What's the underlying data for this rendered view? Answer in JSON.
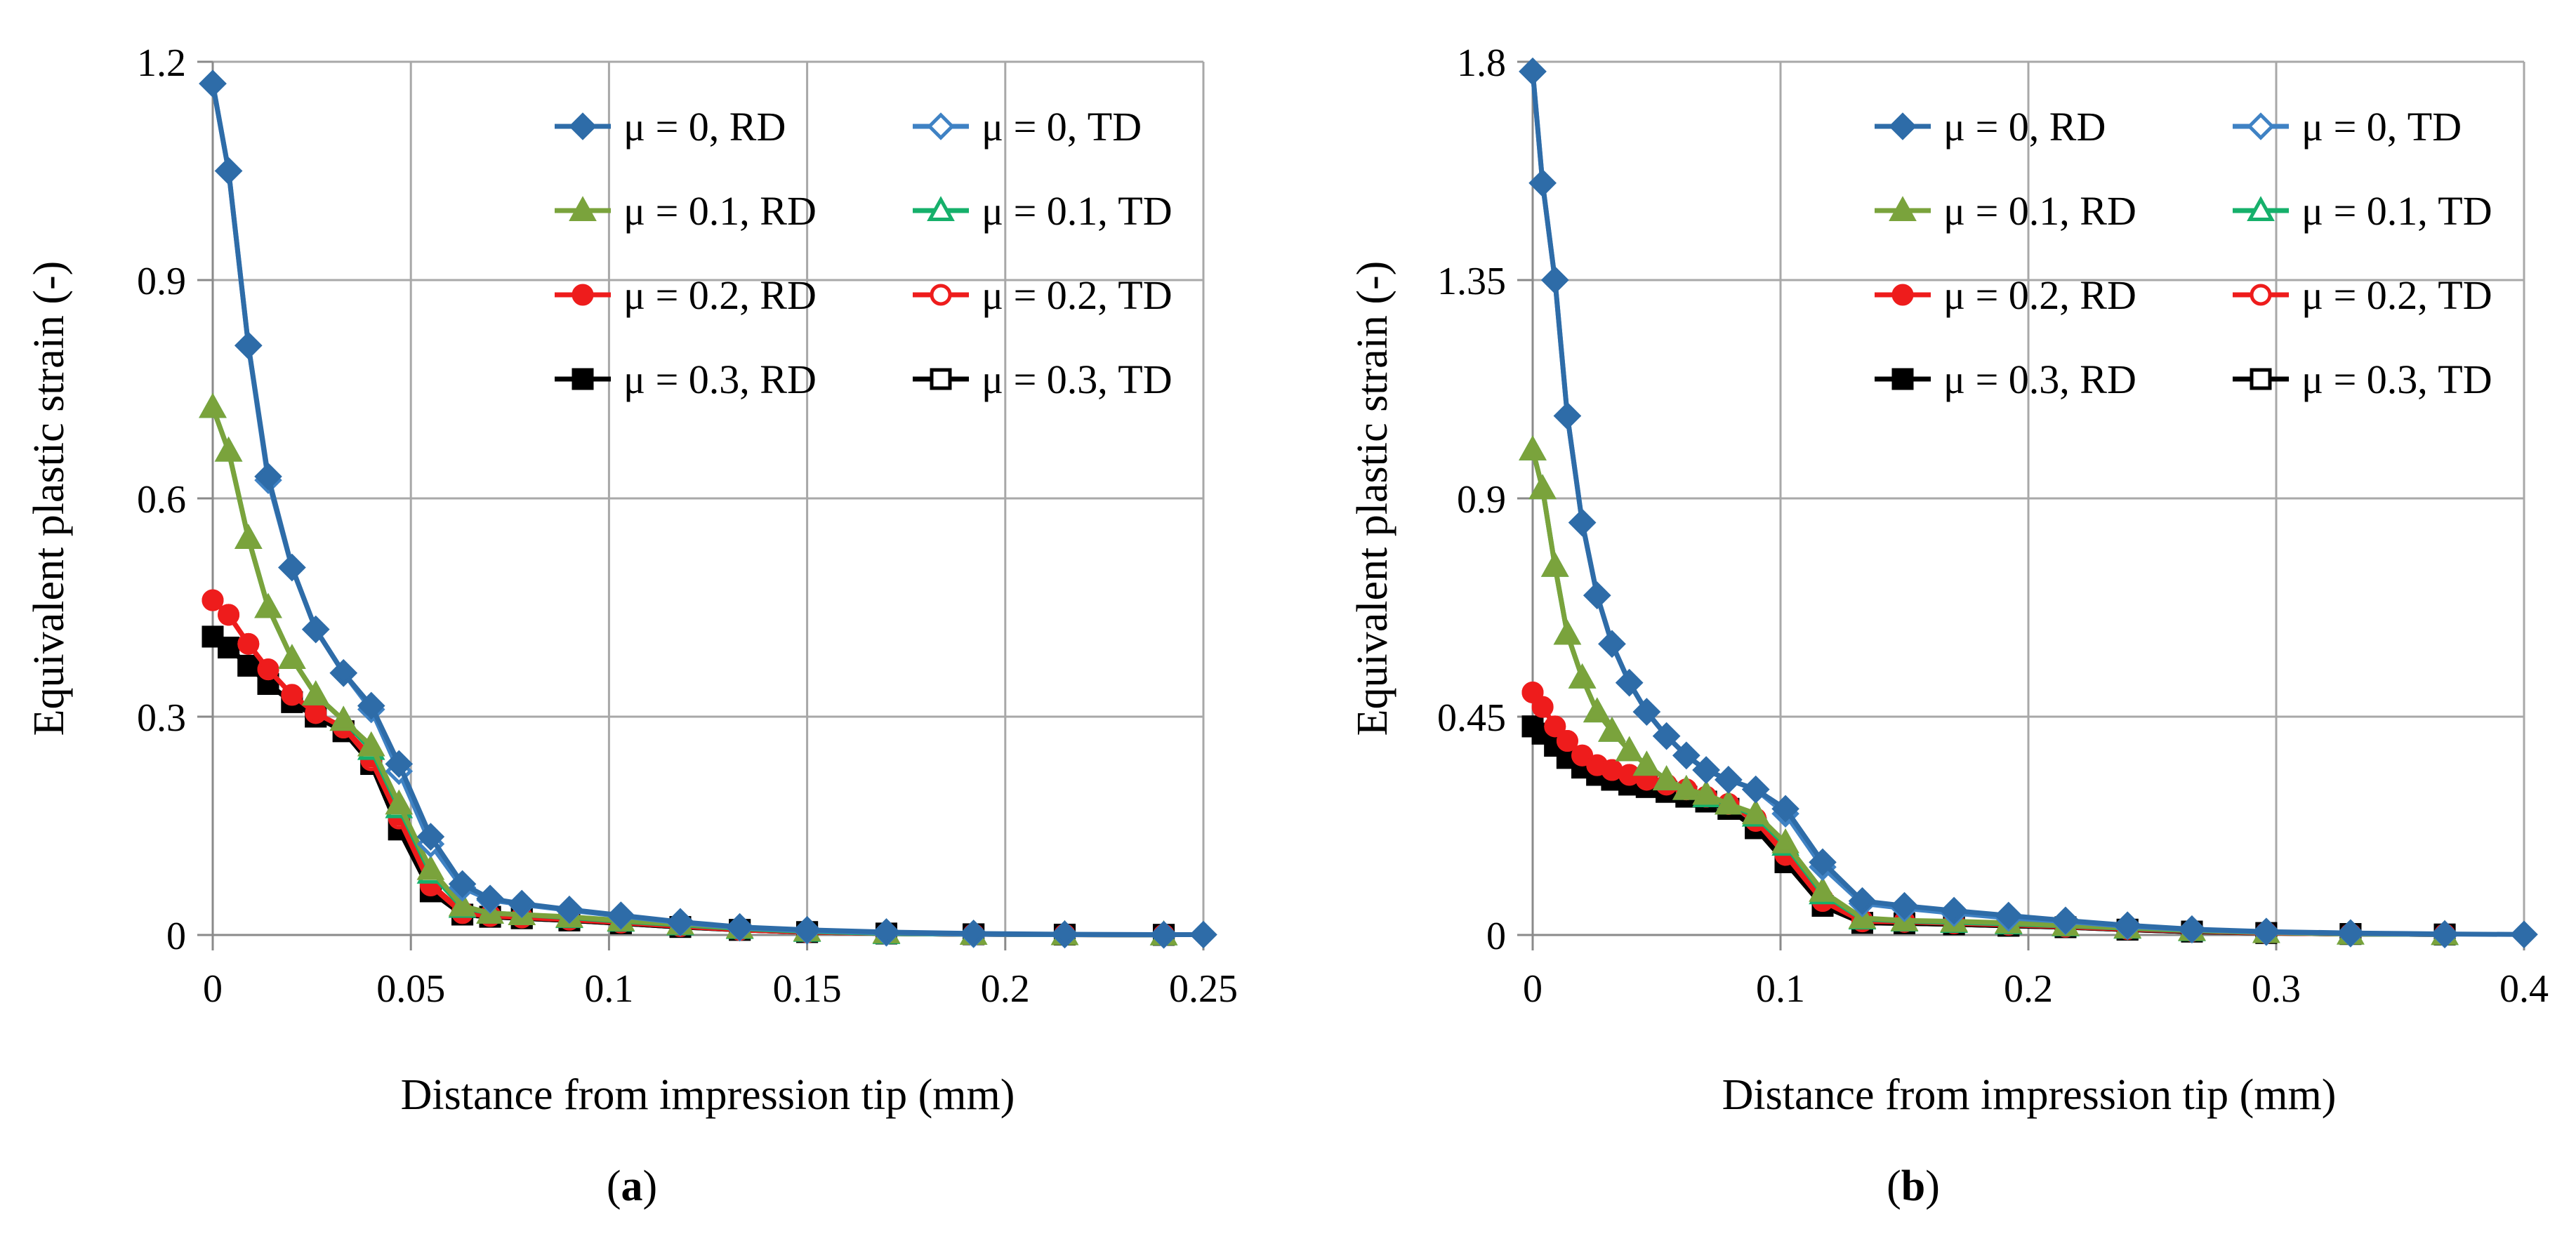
{
  "figure": {
    "panels": [
      "(a)",
      "(b)"
    ]
  },
  "chart_data": [
    {
      "type": "line",
      "panel_label": "(a)",
      "xlabel": "Distance from impression tip (mm)",
      "ylabel": "Equivalent plastic strain (-)",
      "xlim": [
        0,
        0.25
      ],
      "ylim": [
        0,
        1.2
      ],
      "xticks": [
        0,
        0.05,
        0.1,
        0.15,
        0.2,
        0.25
      ],
      "xtick_labels": [
        "0",
        "0.05",
        "0.1",
        "0.15",
        "0.2",
        "0.25"
      ],
      "yticks": [
        0,
        0.3,
        0.6,
        0.9,
        1.2
      ],
      "ytick_labels": [
        "0",
        "0.3",
        "0.6",
        "0.9",
        "1.2"
      ],
      "grid": true,
      "legend_position": "top-right",
      "series": [
        {
          "name": "μ = 0, RD",
          "color": "#2e6ca8",
          "marker": "diamond-filled",
          "x": [
            0,
            0.004,
            0.009,
            0.014,
            0.02,
            0.026,
            0.033,
            0.04,
            0.047,
            0.055,
            0.063,
            0.07,
            0.078,
            0.09,
            0.103,
            0.118,
            0.133,
            0.15,
            0.17,
            0.192,
            0.215,
            0.24,
            0.25
          ],
          "y": [
            1.17,
            1.05,
            0.81,
            0.63,
            0.505,
            0.42,
            0.36,
            0.315,
            0.235,
            0.135,
            0.07,
            0.05,
            0.043,
            0.035,
            0.027,
            0.018,
            0.011,
            0.007,
            0.004,
            0.002,
            0.001,
            0.0005,
            0.0005
          ]
        },
        {
          "name": "μ = 0, TD",
          "color": "#3f82c4",
          "marker": "diamond-open",
          "x": [
            0,
            0.004,
            0.009,
            0.014,
            0.02,
            0.026,
            0.033,
            0.04,
            0.047,
            0.055,
            0.063,
            0.07,
            0.078,
            0.09,
            0.103,
            0.118,
            0.133,
            0.15,
            0.17,
            0.192,
            0.215,
            0.24
          ],
          "y": [
            1.17,
            1.05,
            0.81,
            0.625,
            0.505,
            0.42,
            0.36,
            0.31,
            0.225,
            0.125,
            0.065,
            0.048,
            0.042,
            0.034,
            0.026,
            0.017,
            0.01,
            0.006,
            0.003,
            0.001,
            0.0005,
            0.0002
          ]
        },
        {
          "name": "μ = 0.1, RD",
          "color": "#7aa33c",
          "marker": "triangle-filled",
          "x": [
            0,
            0.004,
            0.009,
            0.014,
            0.02,
            0.026,
            0.033,
            0.04,
            0.047,
            0.055,
            0.063,
            0.07,
            0.078,
            0.09,
            0.103,
            0.118,
            0.133,
            0.15,
            0.17,
            0.192,
            0.215,
            0.24
          ],
          "y": [
            0.725,
            0.665,
            0.545,
            0.45,
            0.38,
            0.33,
            0.295,
            0.26,
            0.18,
            0.09,
            0.04,
            0.03,
            0.028,
            0.025,
            0.02,
            0.015,
            0.01,
            0.006,
            0.003,
            0.001,
            0.0005,
            0.0002
          ]
        },
        {
          "name": "μ = 0.1, TD",
          "color": "#16b06b",
          "marker": "triangle-open",
          "x": [
            0,
            0.004,
            0.009,
            0.014,
            0.02,
            0.026,
            0.033,
            0.04,
            0.047,
            0.055,
            0.063,
            0.07,
            0.078,
            0.09,
            0.103,
            0.118,
            0.133,
            0.15,
            0.17,
            0.192,
            0.215,
            0.24
          ],
          "y": [
            0.725,
            0.665,
            0.545,
            0.45,
            0.38,
            0.33,
            0.295,
            0.255,
            0.175,
            0.085,
            0.038,
            0.03,
            0.028,
            0.024,
            0.019,
            0.014,
            0.009,
            0.005,
            0.002,
            0.001,
            0.0005,
            0.0002
          ]
        },
        {
          "name": "μ = 0.2, RD",
          "color": "#ee1c1c",
          "marker": "circle-filled",
          "x": [
            0,
            0.004,
            0.009,
            0.014,
            0.02,
            0.026,
            0.033,
            0.04,
            0.047,
            0.055,
            0.063,
            0.07,
            0.078,
            0.09,
            0.103,
            0.118,
            0.133,
            0.15,
            0.17,
            0.192,
            0.215,
            0.24
          ],
          "y": [
            0.46,
            0.44,
            0.4,
            0.365,
            0.33,
            0.305,
            0.285,
            0.245,
            0.165,
            0.07,
            0.032,
            0.027,
            0.025,
            0.022,
            0.018,
            0.013,
            0.008,
            0.004,
            0.002,
            0.001,
            0.0005,
            0.0002
          ]
        },
        {
          "name": "μ = 0.2, TD",
          "color": "#ee1c1c",
          "marker": "circle-open",
          "x": [
            0,
            0.004,
            0.009,
            0.014,
            0.02,
            0.026,
            0.033,
            0.04,
            0.047,
            0.055,
            0.063,
            0.07,
            0.078,
            0.09,
            0.103,
            0.118,
            0.133,
            0.15,
            0.17,
            0.192,
            0.215,
            0.24
          ],
          "y": [
            0.46,
            0.44,
            0.4,
            0.365,
            0.33,
            0.305,
            0.285,
            0.24,
            0.16,
            0.068,
            0.03,
            0.026,
            0.024,
            0.021,
            0.017,
            0.012,
            0.007,
            0.004,
            0.002,
            0.001,
            0.0005,
            0.0002
          ]
        },
        {
          "name": "μ = 0.3, RD",
          "color": "#000000",
          "marker": "square-filled",
          "x": [
            0,
            0.004,
            0.009,
            0.014,
            0.02,
            0.026,
            0.033,
            0.04,
            0.047,
            0.055,
            0.063,
            0.07,
            0.078,
            0.09,
            0.103,
            0.118,
            0.133,
            0.15,
            0.17,
            0.192,
            0.215,
            0.24
          ],
          "y": [
            0.41,
            0.395,
            0.37,
            0.345,
            0.32,
            0.3,
            0.28,
            0.235,
            0.145,
            0.06,
            0.028,
            0.025,
            0.023,
            0.02,
            0.016,
            0.011,
            0.007,
            0.004,
            0.002,
            0.001,
            0.0005,
            0.0002
          ]
        },
        {
          "name": "μ = 0.3, TD",
          "color": "#000000",
          "marker": "square-open",
          "x": [
            0,
            0.004,
            0.009,
            0.014,
            0.02,
            0.026,
            0.033,
            0.04,
            0.047,
            0.055,
            0.063,
            0.07,
            0.078,
            0.09,
            0.103,
            0.118,
            0.133,
            0.15,
            0.17,
            0.192,
            0.215,
            0.24
          ],
          "y": [
            0.41,
            0.395,
            0.37,
            0.345,
            0.32,
            0.3,
            0.28,
            0.235,
            0.145,
            0.06,
            0.028,
            0.025,
            0.023,
            0.02,
            0.016,
            0.011,
            0.007,
            0.004,
            0.002,
            0.001,
            0.0005,
            0.0002
          ]
        }
      ]
    },
    {
      "type": "line",
      "panel_label": "(b)",
      "xlabel": "Distance from impression tip (mm)",
      "ylabel": "Equivalent plastic strain (-)",
      "xlim": [
        0,
        0.4
      ],
      "ylim": [
        0,
        1.8
      ],
      "xticks": [
        0,
        0.1,
        0.2,
        0.3,
        0.4
      ],
      "xtick_labels": [
        "0",
        "0.1",
        "0.2",
        "0.3",
        "0.4"
      ],
      "yticks": [
        0,
        0.45,
        0.9,
        1.35,
        1.8
      ],
      "ytick_labels": [
        "0",
        "0.45",
        "0.9",
        "1.35",
        "1.8"
      ],
      "grid": true,
      "legend_position": "top-right",
      "series": [
        {
          "name": "μ = 0, RD",
          "color": "#2e6ca8",
          "marker": "diamond-filled",
          "x": [
            0,
            0.004,
            0.009,
            0.014,
            0.02,
            0.026,
            0.032,
            0.039,
            0.046,
            0.054,
            0.062,
            0.07,
            0.079,
            0.09,
            0.102,
            0.117,
            0.133,
            0.15,
            0.17,
            0.192,
            0.215,
            0.24,
            0.266,
            0.296,
            0.33,
            0.368,
            0.4
          ],
          "y": [
            1.78,
            1.55,
            1.35,
            1.07,
            0.85,
            0.7,
            0.6,
            0.52,
            0.46,
            0.41,
            0.37,
            0.34,
            0.32,
            0.3,
            0.26,
            0.15,
            0.07,
            0.06,
            0.05,
            0.04,
            0.03,
            0.02,
            0.012,
            0.007,
            0.004,
            0.002,
            0.001
          ]
        },
        {
          "name": "μ  = 0, TD",
          "color": "#3f82c4",
          "marker": "diamond-open",
          "x": [
            0,
            0.004,
            0.009,
            0.014,
            0.02,
            0.026,
            0.032,
            0.039,
            0.046,
            0.054,
            0.062,
            0.07,
            0.079,
            0.09,
            0.102,
            0.117,
            0.133,
            0.15,
            0.17,
            0.192,
            0.215,
            0.24,
            0.266,
            0.296,
            0.33,
            0.368
          ],
          "y": [
            1.78,
            1.55,
            1.35,
            1.07,
            0.85,
            0.7,
            0.6,
            0.52,
            0.46,
            0.41,
            0.37,
            0.34,
            0.32,
            0.3,
            0.25,
            0.14,
            0.065,
            0.055,
            0.045,
            0.035,
            0.028,
            0.018,
            0.011,
            0.006,
            0.003,
            0.001
          ]
        },
        {
          "name": "μ = 0.1, RD",
          "color": "#7aa33c",
          "marker": "triangle-filled",
          "x": [
            0,
            0.004,
            0.009,
            0.014,
            0.02,
            0.026,
            0.032,
            0.039,
            0.046,
            0.054,
            0.062,
            0.07,
            0.079,
            0.09,
            0.102,
            0.117,
            0.133,
            0.15,
            0.17,
            0.192,
            0.215,
            0.24,
            0.266,
            0.296,
            0.33,
            0.368
          ],
          "y": [
            1.0,
            0.92,
            0.76,
            0.62,
            0.53,
            0.46,
            0.42,
            0.38,
            0.35,
            0.32,
            0.3,
            0.29,
            0.27,
            0.25,
            0.19,
            0.09,
            0.035,
            0.03,
            0.028,
            0.025,
            0.02,
            0.015,
            0.01,
            0.005,
            0.002,
            0.001
          ]
        },
        {
          "name": "μ = 0.1, TD",
          "color": "#16b06b",
          "marker": "triangle-open",
          "x": [
            0,
            0.004,
            0.009,
            0.014,
            0.02,
            0.026,
            0.032,
            0.039,
            0.046,
            0.054,
            0.062,
            0.07,
            0.079,
            0.09,
            0.102,
            0.117,
            0.133,
            0.15,
            0.17,
            0.192,
            0.215,
            0.24,
            0.266,
            0.296,
            0.33,
            0.368
          ],
          "y": [
            1.0,
            0.92,
            0.76,
            0.62,
            0.53,
            0.46,
            0.42,
            0.38,
            0.35,
            0.32,
            0.3,
            0.285,
            0.27,
            0.245,
            0.185,
            0.085,
            0.033,
            0.029,
            0.026,
            0.023,
            0.019,
            0.014,
            0.009,
            0.005,
            0.002,
            0.001
          ]
        },
        {
          "name": "μ = 0.2, RD",
          "color": "#ee1c1c",
          "marker": "circle-filled",
          "x": [
            0,
            0.004,
            0.009,
            0.014,
            0.02,
            0.026,
            0.032,
            0.039,
            0.046,
            0.054,
            0.062,
            0.07,
            0.079,
            0.09,
            0.102,
            0.117,
            0.133,
            0.15,
            0.17,
            0.192,
            0.215,
            0.24,
            0.266,
            0.296,
            0.33,
            0.368
          ],
          "y": [
            0.5,
            0.47,
            0.43,
            0.4,
            0.37,
            0.35,
            0.34,
            0.33,
            0.32,
            0.31,
            0.3,
            0.285,
            0.27,
            0.24,
            0.17,
            0.075,
            0.03,
            0.028,
            0.025,
            0.022,
            0.018,
            0.013,
            0.009,
            0.005,
            0.002,
            0.001
          ]
        },
        {
          "name": "μ = 0.2, TD",
          "color": "#ee1c1c",
          "marker": "circle-open",
          "x": [
            0,
            0.004,
            0.009,
            0.014,
            0.02,
            0.026,
            0.032,
            0.039,
            0.046,
            0.054,
            0.062,
            0.07,
            0.079,
            0.09,
            0.102,
            0.117,
            0.133,
            0.15,
            0.17,
            0.192,
            0.215,
            0.24,
            0.266,
            0.296,
            0.33,
            0.368
          ],
          "y": [
            0.5,
            0.47,
            0.43,
            0.4,
            0.37,
            0.35,
            0.34,
            0.33,
            0.32,
            0.31,
            0.3,
            0.285,
            0.27,
            0.235,
            0.165,
            0.07,
            0.028,
            0.027,
            0.024,
            0.021,
            0.017,
            0.012,
            0.008,
            0.004,
            0.002,
            0.001
          ]
        },
        {
          "name": "μ = 0.3, RD",
          "color": "#000000",
          "marker": "square-filled",
          "x": [
            0,
            0.004,
            0.009,
            0.014,
            0.02,
            0.026,
            0.032,
            0.039,
            0.046,
            0.054,
            0.062,
            0.07,
            0.079,
            0.09,
            0.102,
            0.117,
            0.133,
            0.15,
            0.17,
            0.192,
            0.215,
            0.24,
            0.266,
            0.296,
            0.33,
            0.368
          ],
          "y": [
            0.43,
            0.415,
            0.39,
            0.365,
            0.345,
            0.33,
            0.32,
            0.31,
            0.305,
            0.295,
            0.285,
            0.275,
            0.26,
            0.22,
            0.15,
            0.06,
            0.025,
            0.024,
            0.022,
            0.019,
            0.016,
            0.011,
            0.007,
            0.004,
            0.002,
            0.001
          ]
        },
        {
          "name": "μ = 0.3, TD",
          "color": "#000000",
          "marker": "square-open",
          "x": [
            0,
            0.004,
            0.009,
            0.014,
            0.02,
            0.026,
            0.032,
            0.039,
            0.046,
            0.054,
            0.062,
            0.07,
            0.079,
            0.09,
            0.102,
            0.117,
            0.133,
            0.15,
            0.17,
            0.192,
            0.215,
            0.24,
            0.266,
            0.296,
            0.33,
            0.368
          ],
          "y": [
            0.43,
            0.415,
            0.39,
            0.365,
            0.345,
            0.33,
            0.32,
            0.31,
            0.305,
            0.295,
            0.285,
            0.275,
            0.26,
            0.22,
            0.15,
            0.06,
            0.025,
            0.024,
            0.022,
            0.019,
            0.016,
            0.011,
            0.007,
            0.004,
            0.002,
            0.001
          ]
        }
      ]
    }
  ]
}
